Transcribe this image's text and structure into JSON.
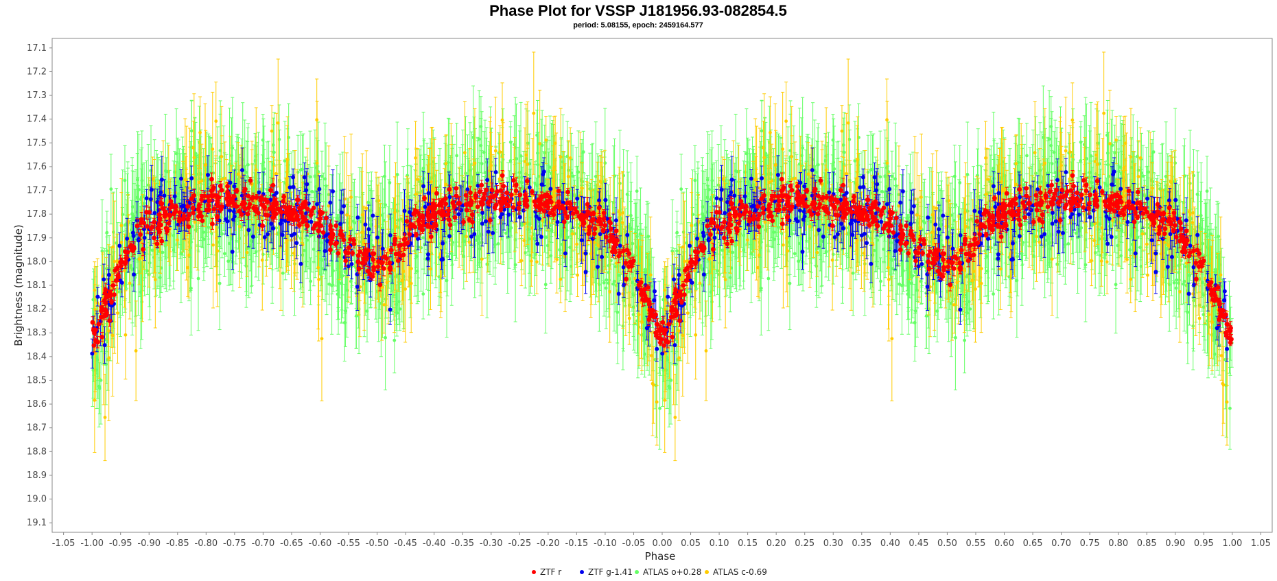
{
  "chart_data": {
    "type": "scatter",
    "title": "Phase Plot for VSSP J181956.93-082854.5",
    "subtitle": "period: 5.08155, epoch: 2459164.577",
    "xlabel": "Phase",
    "ylabel": "Brightness (magnitude)",
    "xlim": [
      -1.07,
      1.07
    ],
    "ylim": [
      19.14,
      17.06
    ],
    "y_inverted": true,
    "grid": false,
    "legend_position": "bottom",
    "x_ticks": [
      "-1.05",
      "-1.00",
      "-0.95",
      "-0.90",
      "-0.85",
      "-0.80",
      "-0.75",
      "-0.70",
      "-0.65",
      "-0.60",
      "-0.55",
      "-0.50",
      "-0.45",
      "-0.40",
      "-0.35",
      "-0.30",
      "-0.25",
      "-0.20",
      "-0.15",
      "-0.10",
      "-0.05",
      "0.00",
      "0.05",
      "0.10",
      "0.15",
      "0.20",
      "0.25",
      "0.30",
      "0.35",
      "0.40",
      "0.45",
      "0.50",
      "0.55",
      "0.60",
      "0.65",
      "0.70",
      "0.75",
      "0.80",
      "0.85",
      "0.90",
      "0.95",
      "1.00",
      "1.05"
    ],
    "y_ticks": [
      "17.1",
      "17.2",
      "17.3",
      "17.4",
      "17.5",
      "17.6",
      "17.7",
      "17.8",
      "17.9",
      "18.0",
      "18.1",
      "18.2",
      "18.3",
      "18.4",
      "18.5",
      "18.6",
      "18.7",
      "18.8",
      "18.9",
      "19.0",
      "19.1"
    ],
    "light_curve_shape": {
      "phase": [
        0.0,
        0.02,
        0.04,
        0.06,
        0.09,
        0.13,
        0.18,
        0.25,
        0.32,
        0.38,
        0.43,
        0.47,
        0.5,
        0.53,
        0.555,
        0.6,
        0.66,
        0.72,
        0.78,
        0.84,
        0.89,
        0.92,
        0.95,
        0.97,
        0.985,
        1.0
      ],
      "magnitude": [
        18.33,
        18.22,
        18.08,
        17.95,
        17.86,
        17.8,
        17.76,
        17.74,
        17.77,
        17.82,
        17.9,
        17.98,
        18.02,
        17.97,
        17.87,
        17.8,
        17.76,
        17.73,
        17.74,
        17.78,
        17.85,
        17.92,
        18.03,
        18.15,
        18.25,
        18.33
      ]
    },
    "series": [
      {
        "name": "ZTF r",
        "color": "#ff0000",
        "count": 600,
        "scatter": 0.035,
        "error": 0.02,
        "point_radius": 3.4
      },
      {
        "name": "ZTF g-1.41",
        "color": "#0000ee",
        "count": 300,
        "scatter": 0.08,
        "error": 0.07,
        "point_radius": 3.0
      },
      {
        "name": "ATLAS o+0.28",
        "color": "#66ff66",
        "count": 1150,
        "scatter": 0.13,
        "error": 0.16,
        "point_radius": 2.4
      },
      {
        "name": "ATLAS c-0.69",
        "color": "#ffcc00",
        "count": 330,
        "scatter": 0.14,
        "error": 0.18,
        "point_radius": 2.4
      }
    ]
  }
}
